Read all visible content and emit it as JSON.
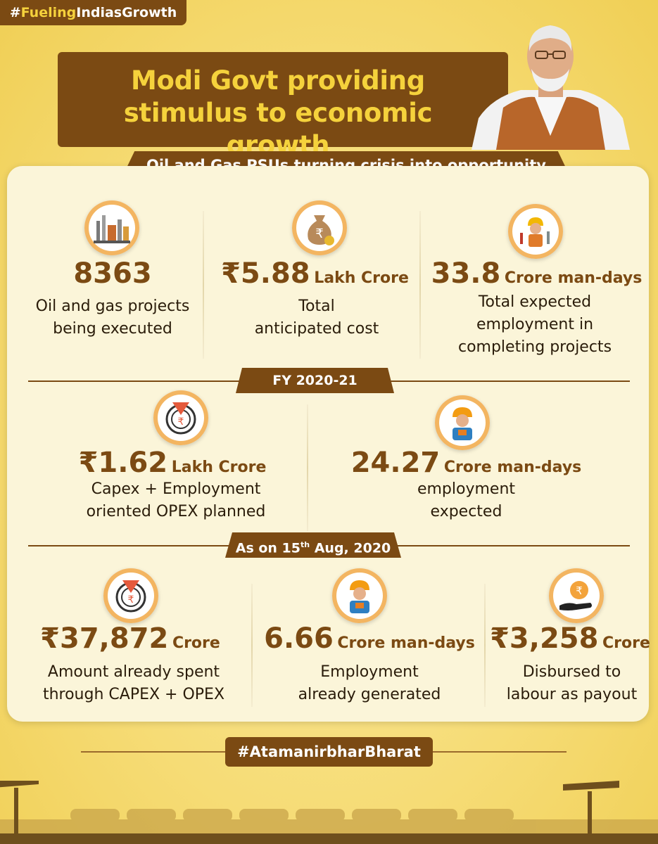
{
  "header": {
    "hashtag_prefix": "#",
    "hashtag_highlight": "Fueling",
    "hashtag_rest": "IndiasGrowth",
    "title_line1": "Modi Govt providing",
    "title_line2": "stimulus to economic growth",
    "subtitle": "Oil and Gas PSUs turning crisis into opportunity"
  },
  "top_stats": [
    {
      "number": "8363",
      "unit": "",
      "desc_line1": "Oil and gas projects",
      "desc_line2": "being executed",
      "icon": "refinery-icon"
    },
    {
      "number": "₹5.88",
      "unit": "Lakh Crore",
      "desc_line1": "Total",
      "desc_line2": "anticipated cost",
      "icon": "money-bag-icon"
    },
    {
      "number": "33.8",
      "unit": "Crore man-days",
      "desc_line1": "Total expected",
      "desc_line2": "employment in",
      "desc_line3": "completing projects",
      "icon": "worker-tools-icon"
    }
  ],
  "fy_section": {
    "label": "FY 2020-21",
    "stats": [
      {
        "number": "₹1.62",
        "unit": "Lakh Crore",
        "desc_line1": "Capex + Employment",
        "desc_line2": "oriented OPEX planned",
        "icon": "rupee-target-icon"
      },
      {
        "number": "24.27",
        "unit": "Crore man-days",
        "desc_line1": "employment",
        "desc_line2": "expected",
        "icon": "worker-icon"
      }
    ]
  },
  "aug_section": {
    "label_prefix": "As on 15",
    "label_sup": "th",
    "label_suffix": " Aug, 2020",
    "stats": [
      {
        "number": "₹37,872",
        "unit": "Crore",
        "desc_line1": "Amount already spent",
        "desc_line2": "through CAPEX + OPEX",
        "icon": "rupee-target-icon"
      },
      {
        "number": "6.66",
        "unit": "Crore man-days",
        "desc_line1": "Employment",
        "desc_line2": "already generated",
        "icon": "worker-icon"
      },
      {
        "number": "₹3,258",
        "unit": "Crore",
        "desc_line1": "Disbursed to",
        "desc_line2": "labour as payout",
        "icon": "rupee-hand-icon"
      }
    ]
  },
  "footer": {
    "hashtag": "#AtamanirbharBharat"
  },
  "colors": {
    "brown": "#7b4a13",
    "yellow": "#f5d23c",
    "orange": "#f3b561",
    "background": "#f4d768"
  }
}
